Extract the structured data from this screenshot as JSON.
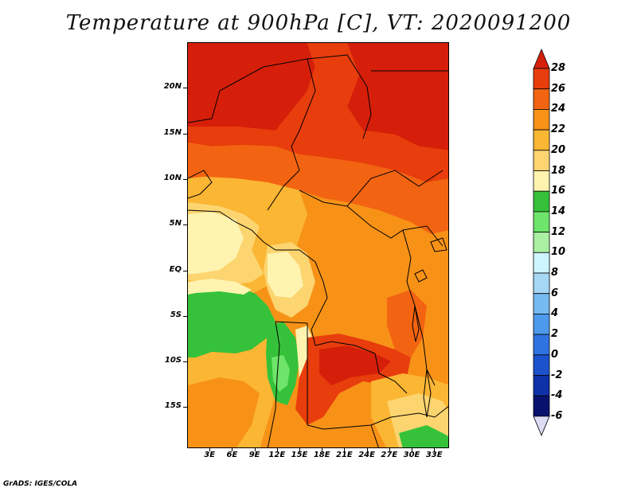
{
  "title": "Temperature at 900hPa [C], VT: 2020091200",
  "credit": "GrADS: IGES/COLA",
  "map": {
    "lat_ticks": [
      "20N",
      "15N",
      "10N",
      "5N",
      "EQ",
      "5S",
      "10S",
      "15S"
    ],
    "lat_values": [
      20,
      15,
      10,
      5,
      0,
      -5,
      -10,
      -15
    ],
    "lon_ticks": [
      "3E",
      "6E",
      "9E",
      "12E",
      "15E",
      "18E",
      "21E",
      "24E",
      "27E",
      "30E",
      "33E"
    ],
    "lon_values": [
      3,
      6,
      9,
      12,
      15,
      18,
      21,
      24,
      27,
      30,
      33
    ],
    "lon_range": [
      0,
      35
    ],
    "lat_range": [
      -19.5,
      25
    ]
  },
  "colorbar": {
    "labels": [
      "28",
      "26",
      "24",
      "22",
      "20",
      "18",
      "16",
      "14",
      "12",
      "10",
      "8",
      "6",
      "4",
      "2",
      "0",
      "-2",
      "-4",
      "-6"
    ],
    "colors": [
      "#d61f0a",
      "#e83d0c",
      "#f26411",
      "#f79217",
      "#fbb634",
      "#fdd570",
      "#fff3b0",
      "#35c23a",
      "#6ee46a",
      "#aaf0a2",
      "#cdf5ff",
      "#a6d8f5",
      "#75baf0",
      "#4c9aeb",
      "#2f73e0",
      "#1c52cc",
      "#0e31a8",
      "#08126e",
      "#dcdcf5"
    ]
  }
}
